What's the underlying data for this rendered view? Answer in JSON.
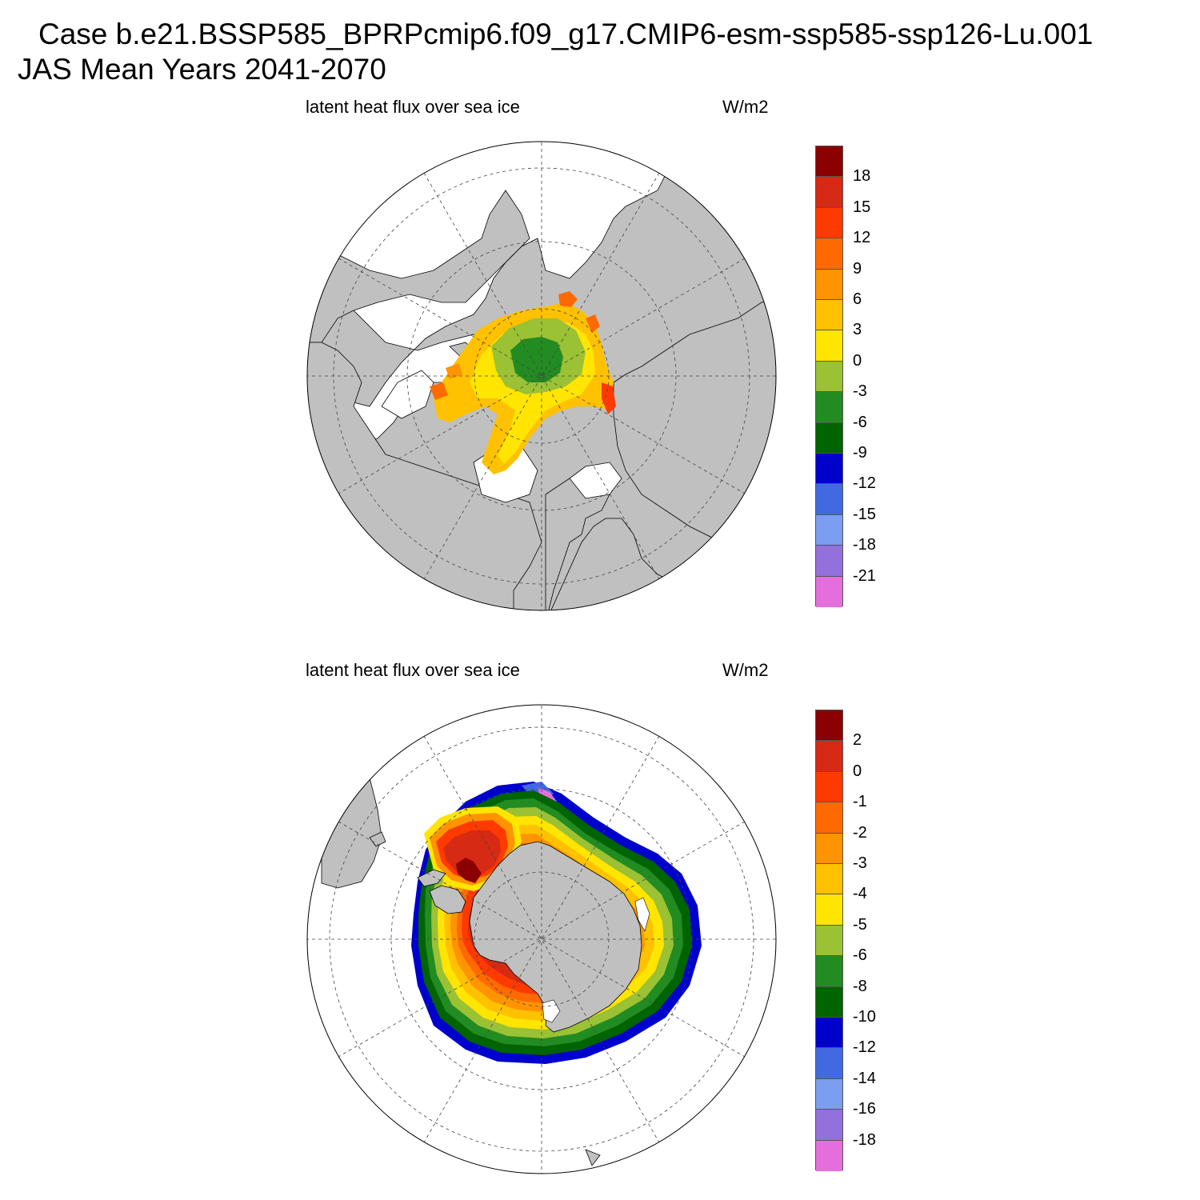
{
  "header": {
    "line1": "Case b.e21.BSSP585_BPRPcmip6.f09_g17.CMIP6-esm-ssp585-ssp126-Lu.001",
    "line2": "JAS Mean   Years 2041-2070"
  },
  "chart_data": [
    {
      "type": "heatmap",
      "projection": "polar-stereographic",
      "hemisphere": "north",
      "title": "latent heat flux over sea ice",
      "units": "W/m2",
      "colorbar_labels": [
        "18",
        "15",
        "12",
        "9",
        "6",
        "3",
        "0",
        "-3",
        "-6",
        "-9",
        "-12",
        "-15",
        "-18",
        "-21"
      ],
      "colorbar_colors": [
        "#8b0000",
        "#d62a14",
        "#ff3a00",
        "#ff6a00",
        "#ff9300",
        "#ffc100",
        "#ffe500",
        "#9bc134",
        "#228b22",
        "#006400",
        "#0000cd",
        "#4169e1",
        "#7b9ef0",
        "#9370db",
        "#e46fdc"
      ],
      "land_color": "#c0c0c0"
    },
    {
      "type": "heatmap",
      "projection": "polar-stereographic",
      "hemisphere": "south",
      "title": "latent heat flux over sea ice",
      "units": "W/m2",
      "colorbar_labels": [
        "2",
        "0",
        "-1",
        "-2",
        "-3",
        "-4",
        "-5",
        "-6",
        "-8",
        "-10",
        "-12",
        "-14",
        "-16",
        "-18"
      ],
      "colorbar_colors": [
        "#8b0000",
        "#d62a14",
        "#ff3a00",
        "#ff6a00",
        "#ff9300",
        "#ffc100",
        "#ffe500",
        "#9bc134",
        "#228b22",
        "#006400",
        "#0000cd",
        "#4169e1",
        "#7b9ef0",
        "#9370db",
        "#e46fdc"
      ],
      "land_color": "#c0c0c0"
    }
  ]
}
